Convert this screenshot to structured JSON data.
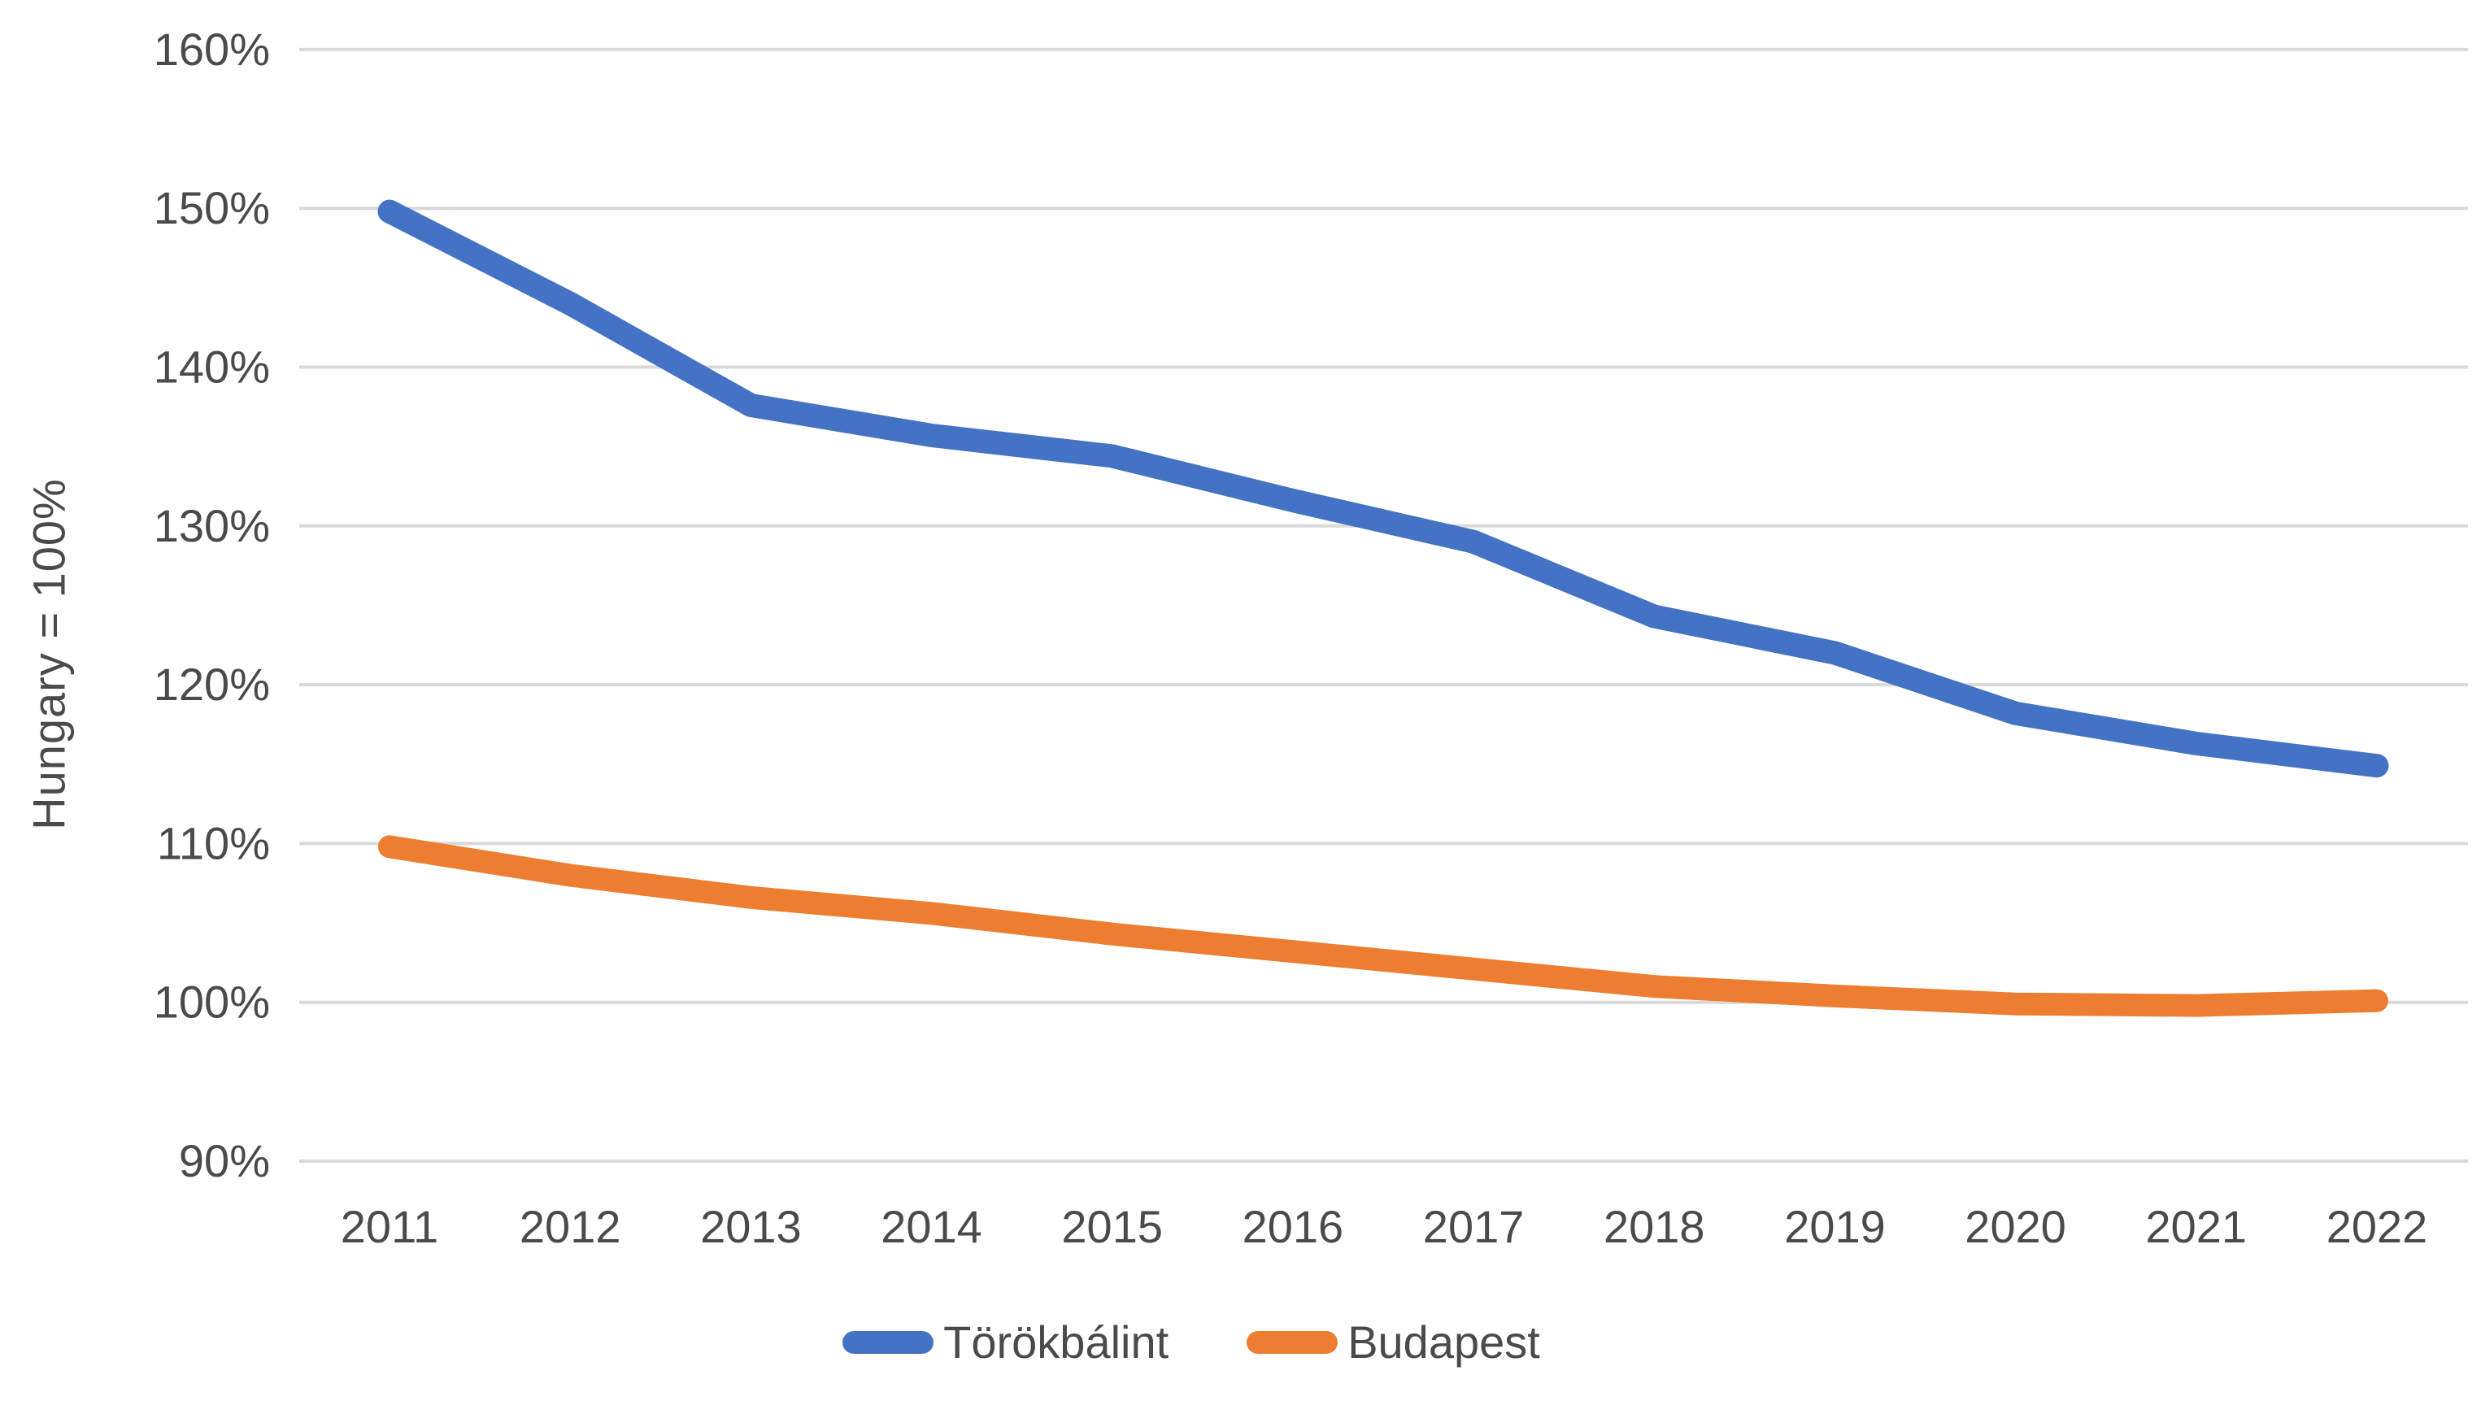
{
  "chart_data": {
    "type": "line",
    "title": "",
    "xlabel": "",
    "ylabel": "Hungary = 100%",
    "categories": [
      "2011",
      "2012",
      "2013",
      "2014",
      "2015",
      "2016",
      "2017",
      "2018",
      "2019",
      "2020",
      "2021",
      "2022"
    ],
    "series": [
      {
        "name": "Törökbálint",
        "color": "#4472C4",
        "values": [
          149.8,
          144.0,
          137.6,
          135.7,
          134.4,
          131.6,
          129.0,
          124.3,
          122.0,
          118.2,
          116.3,
          114.9
        ]
      },
      {
        "name": "Budapest",
        "color": "#ED7D31",
        "values": [
          109.8,
          108.0,
          106.6,
          105.6,
          104.3,
          103.2,
          102.1,
          101.0,
          100.4,
          99.9,
          99.8,
          100.1
        ]
      }
    ],
    "y_axis": {
      "min": 90,
      "max": 160,
      "step": 10,
      "tick_suffix": "%",
      "tick_labels": [
        "90%",
        "100%",
        "110%",
        "120%",
        "130%",
        "140%",
        "150%",
        "160%"
      ]
    },
    "grid": true,
    "gridline_color": "#D9D9D9",
    "axis_text_color": "#4a4a4a",
    "legend_position": "bottom",
    "ylim": [
      90,
      160
    ]
  }
}
